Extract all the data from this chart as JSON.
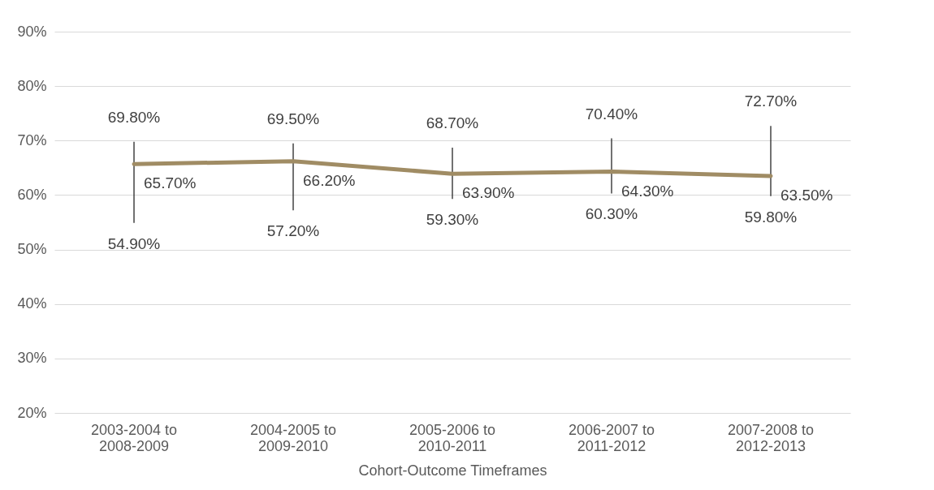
{
  "chart_data": {
    "type": "line",
    "xlabel": "Cohort-Outcome Timeframes",
    "categories": [
      "2003-2004 to 2008-2009",
      "2004-2005 to 2009-2010",
      "2005-2006 to 2010-2011",
      "2006-2007 to 2011-2012",
      "2007-2008 to 2012-2013"
    ],
    "series": [
      {
        "color": "#a08c64",
        "values": [
          65.7,
          66.2,
          63.9,
          64.3,
          63.5
        ],
        "errors": [
          [
            54.9,
            69.8
          ],
          [
            57.2,
            69.5
          ],
          [
            59.3,
            68.7
          ],
          [
            60.3,
            70.4
          ],
          [
            59.8,
            72.7
          ]
        ],
        "value_labels": [
          "65.70%",
          "66.20%",
          "63.90%",
          "64.30%",
          "63.50%"
        ]
      }
    ],
    "annotations": [
      {
        "text": "69.80%",
        "x": "2003-2004 to 2008-2009",
        "y": 69.8
      },
      {
        "text": "54.90%",
        "x": "2003-2004 to 2008-2009",
        "y": 54.9
      },
      {
        "text": "69.50%",
        "x": "2004-2005 to 2009-2010",
        "y": 69.5
      },
      {
        "text": "57.20%",
        "x": "2004-2005 to 2009-2010",
        "y": 57.2
      },
      {
        "text": "68.70%",
        "x": "2005-2006 to 2010-2011",
        "y": 68.7
      },
      {
        "text": "59.30%",
        "x": "2005-2006 to 2010-2011",
        "y": 59.3
      },
      {
        "text": "70.40%",
        "x": "2006-2007 to 2011-2012",
        "y": 70.4
      },
      {
        "text": "60.30%",
        "x": "2006-2007 to 2011-2012",
        "y": 60.3
      },
      {
        "text": "72.70%",
        "x": "2007-2008 to 2012-2013",
        "y": 72.7
      },
      {
        "text": "59.80%",
        "x": "2007-2008 to 2012-2013",
        "y": 59.8
      }
    ],
    "ylim": [
      20,
      90
    ],
    "yticks": [
      {
        "value": 20,
        "label": "20%"
      },
      {
        "value": 30,
        "label": "30%"
      },
      {
        "value": 40,
        "label": "40%"
      },
      {
        "value": 50,
        "label": "50%"
      },
      {
        "value": 60,
        "label": "60%"
      },
      {
        "value": 70,
        "label": "70%"
      },
      {
        "value": 80,
        "label": "80%"
      },
      {
        "value": 90,
        "label": "90%"
      }
    ],
    "grid": "y",
    "marker": "none",
    "line_style": "solid"
  }
}
